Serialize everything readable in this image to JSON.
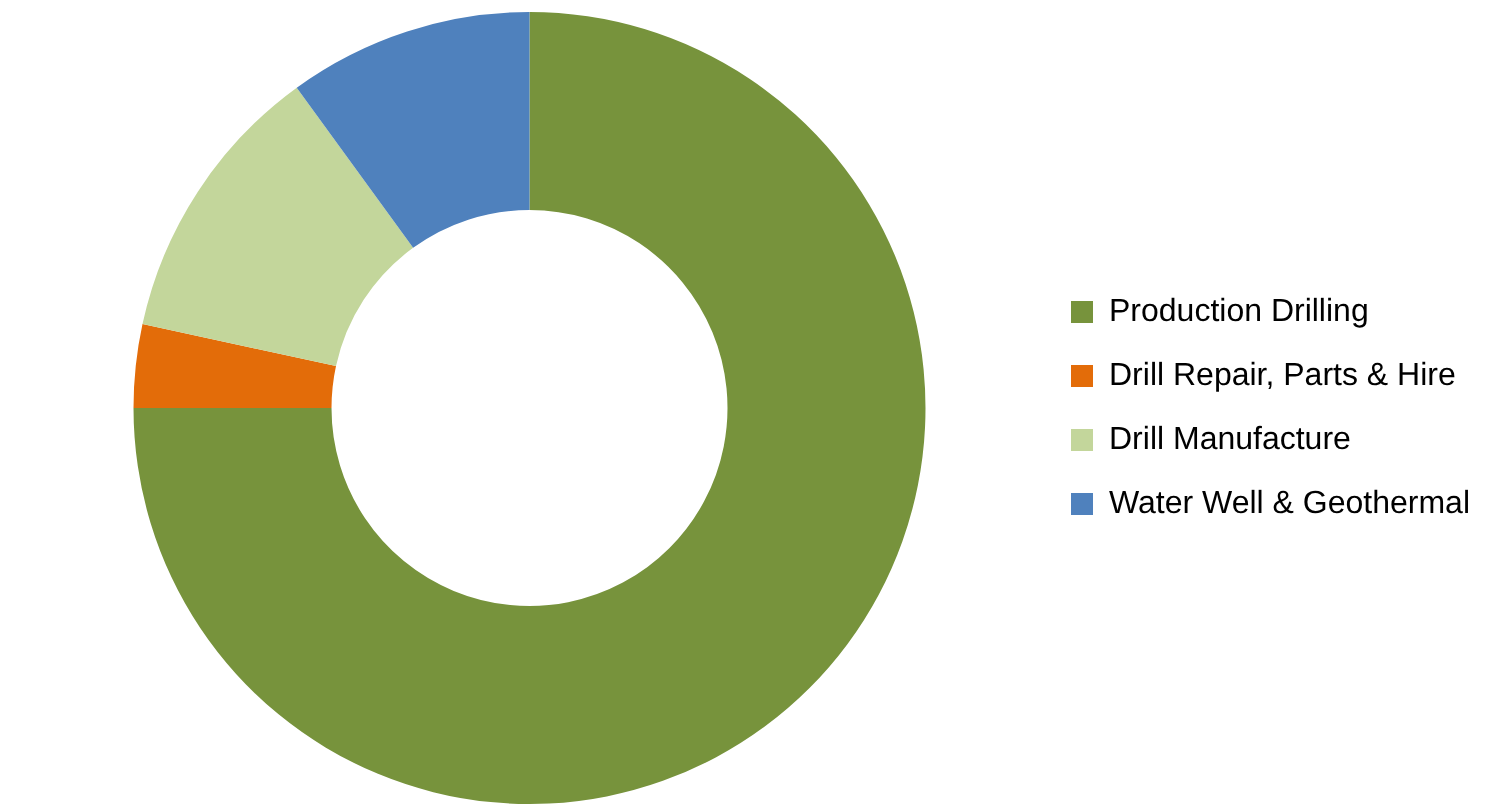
{
  "chart_data": {
    "type": "donut",
    "categories": [
      "Production Drilling",
      "Drill Repair, Parts & Hire",
      "Drill Manufacture",
      "Water Well & Geothermal"
    ],
    "values": [
      75,
      3.4,
      11.6,
      10
    ],
    "colors": [
      "#77933c",
      "#e36c09",
      "#c3d69b",
      "#4f81bd"
    ],
    "legend": "right"
  }
}
